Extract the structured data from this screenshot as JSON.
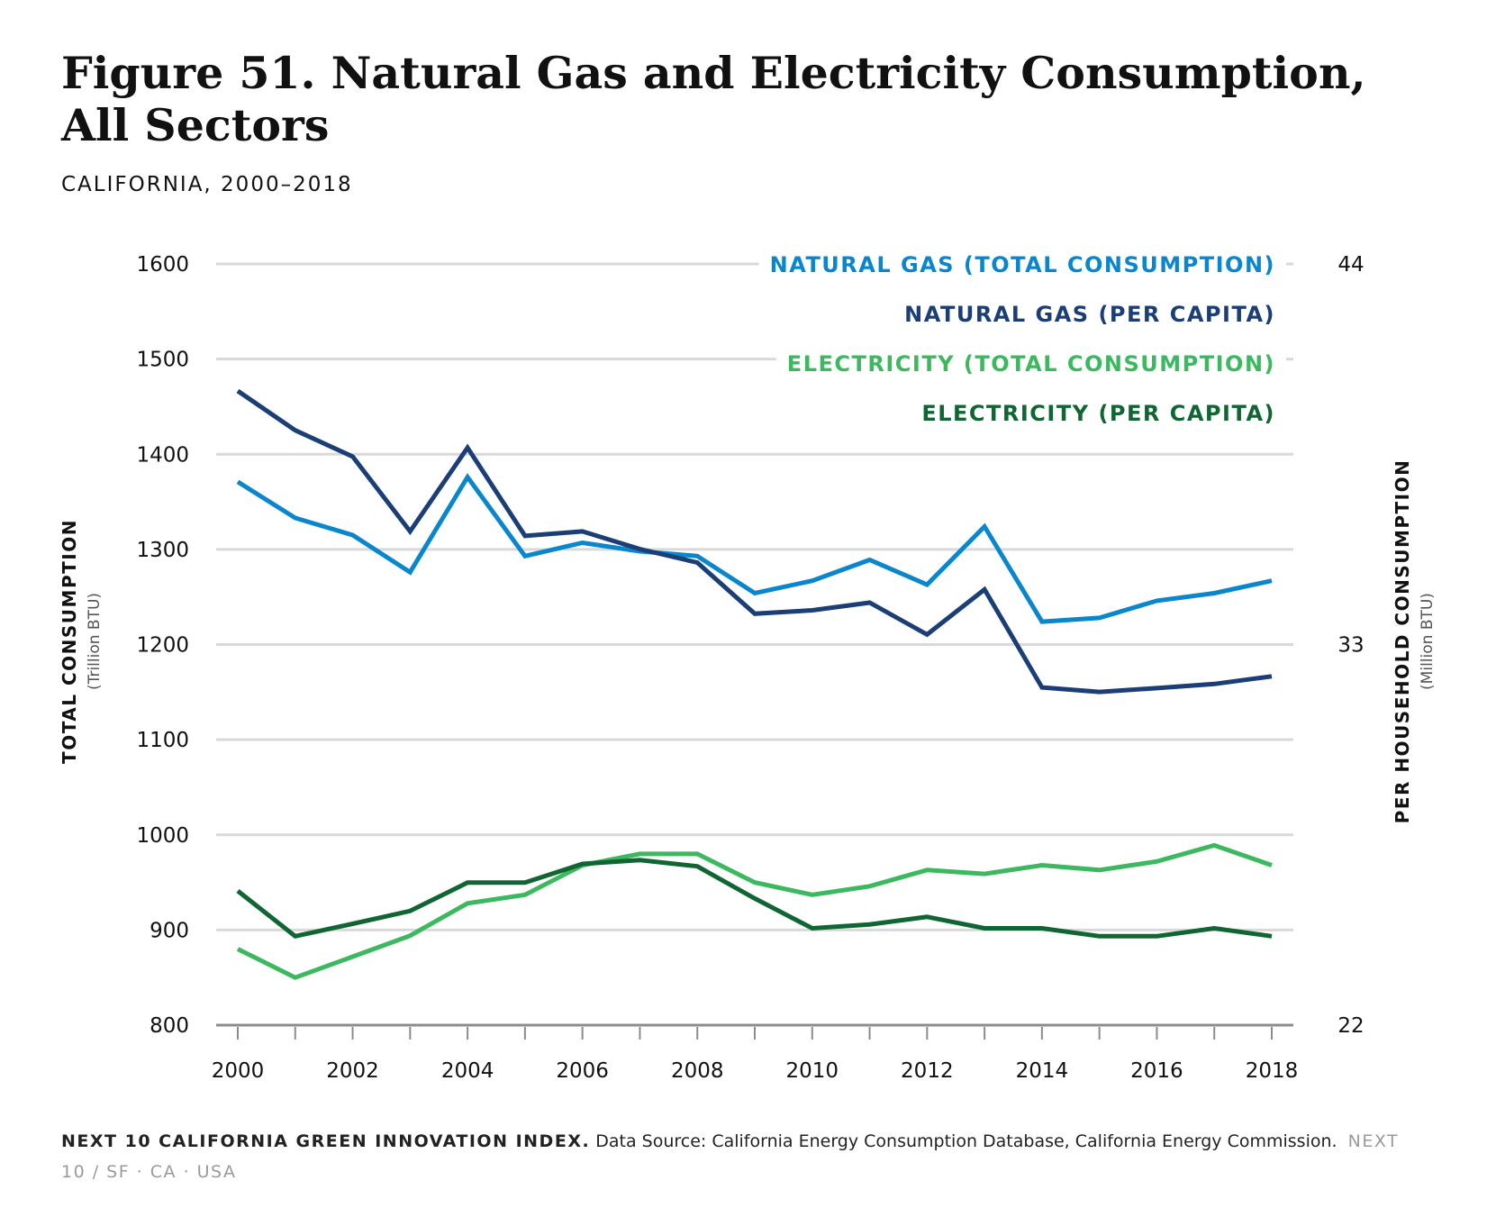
{
  "title": "Figure 51. Natural Gas and Electricity Consumption, All Sectors",
  "subtitle": "CALIFORNIA, 2000–2018",
  "footer": {
    "source_bold": "NEXT 10 CALIFORNIA GREEN INNOVATION INDEX.",
    "source_text": " Data Source: California Energy Consumption Database, California Energy Commission.",
    "brand": "NEXT 10 / SF · CA · USA"
  },
  "chart_data": {
    "type": "line",
    "x": [
      2000,
      2001,
      2002,
      2003,
      2004,
      2005,
      2006,
      2007,
      2008,
      2009,
      2010,
      2011,
      2012,
      2013,
      2014,
      2015,
      2016,
      2017,
      2018
    ],
    "x_tick_labels": [
      "2000",
      "2002",
      "2004",
      "2006",
      "2008",
      "2010",
      "2012",
      "2014",
      "2016",
      "2018"
    ],
    "y_left": {
      "label": "TOTAL CONSUMPTION",
      "unit": "(Trillion BTU)",
      "lim": [
        800,
        1600
      ],
      "ticks": [
        800,
        900,
        1000,
        1100,
        1200,
        1300,
        1400,
        1500,
        1600
      ]
    },
    "y_right": {
      "label": "PER HOUSEHOLD CONSUMPTION",
      "unit": "(Million BTU)",
      "lim": [
        22,
        44
      ],
      "ticks": [
        22,
        33,
        44
      ]
    },
    "grid": true,
    "legend_position": "top-right",
    "series": [
      {
        "name": "NATURAL GAS (TOTAL CONSUMPTION)",
        "axis": "left",
        "color": "#0a86cc",
        "values": [
          1371,
          1333,
          1315,
          1276,
          1376,
          1293,
          1307,
          1298,
          1293,
          1254,
          1267,
          1289,
          1263,
          1324,
          1224,
          1228,
          1246,
          1254,
          1267
        ]
      },
      {
        "name": "NATURAL GAS (PER CAPITA)",
        "axis": "right",
        "color": "#1a3e75",
        "values": [
          40.33,
          39.19,
          38.43,
          36.27,
          38.69,
          36.14,
          36.27,
          35.76,
          35.37,
          33.89,
          33.99,
          34.21,
          33.29,
          34.59,
          31.76,
          31.63,
          31.74,
          31.86,
          32.08
        ]
      },
      {
        "name": "ELECTRICITY (TOTAL CONSUMPTION)",
        "axis": "left",
        "color": "#3cb95f",
        "values": [
          880,
          850,
          872,
          894,
          928,
          937,
          968,
          980,
          980,
          950,
          937,
          946,
          963,
          959,
          968,
          963,
          972,
          989,
          968
        ]
      },
      {
        "name": "ELECTRICITY (PER CAPITA)",
        "axis": "right",
        "color": "#106633",
        "values": [
          25.88,
          24.57,
          24.93,
          25.3,
          26.12,
          26.12,
          26.66,
          26.77,
          26.59,
          25.66,
          24.8,
          24.91,
          25.13,
          24.8,
          24.8,
          24.57,
          24.57,
          24.8,
          24.57
        ]
      }
    ]
  }
}
